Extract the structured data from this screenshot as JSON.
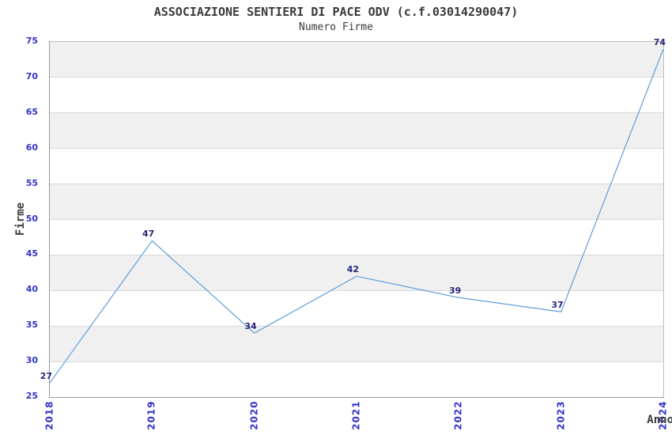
{
  "page": {
    "background": "#ffffff"
  },
  "chart_data": {
    "type": "line",
    "title": "ASSOCIAZIONE SENTIERI DI PACE ODV (c.f.03014290047)",
    "subtitle": "Numero Firme",
    "xlabel": "Anno",
    "ylabel": "Firme",
    "categories": [
      "2018",
      "2019",
      "2020",
      "2021",
      "2022",
      "2023",
      "2024"
    ],
    "values": [
      27,
      47,
      34,
      42,
      39,
      37,
      74
    ],
    "point_labels": [
      "27",
      "47",
      "34",
      "42",
      "39",
      "37",
      "74"
    ],
    "ylim": [
      25,
      75
    ],
    "ytick_step": 5,
    "yticks": [
      25,
      30,
      35,
      40,
      45,
      50,
      55,
      60,
      65,
      70,
      75
    ],
    "grid": true,
    "legend_position": "none",
    "background_bands": "alternating gray/white horizontal bands every 5 units, gray on 70-75, 60-65, 50-55, 40-45, 30-35",
    "x_tick_rotation": -90,
    "colors": {
      "line": "#5f9dd8",
      "tick_label": "#3333cc",
      "point_label": "#26267e",
      "band": "#f0f0f0",
      "grid": "#d9d9d9",
      "frame": "#bcbcbc",
      "axis": "#999999",
      "title": "#3a3a3a",
      "background": "#ffffff"
    }
  }
}
